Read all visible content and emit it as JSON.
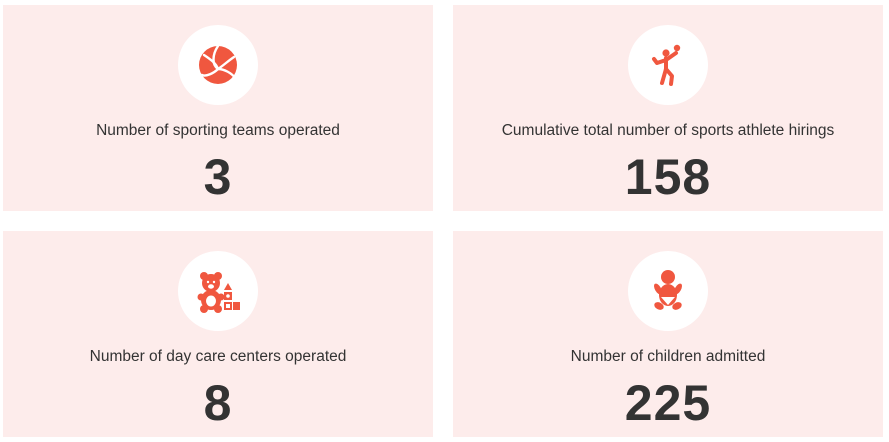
{
  "accent_color": "#f0573f",
  "card_background": "#fdeceb",
  "stats": [
    {
      "icon": "volleyball-icon",
      "label": "Number of sporting teams operated",
      "value": "3"
    },
    {
      "icon": "athlete-icon",
      "label": "Cumulative total number of sports athlete hirings",
      "value": "158"
    },
    {
      "icon": "teddy-bear-icon",
      "label": "Number of day care centers operated",
      "value": "8"
    },
    {
      "icon": "baby-icon",
      "label": "Number of children admitted",
      "value": "225"
    }
  ]
}
